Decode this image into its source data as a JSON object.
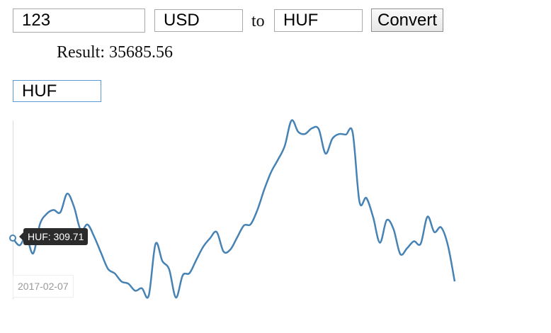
{
  "converter": {
    "amount": "123",
    "from_currency": "USD",
    "to_label": "to",
    "to_currency": "HUF",
    "convert_label": "Convert",
    "result_label": "Result:",
    "result_value": "35685.56"
  },
  "chart": {
    "selected_currency": "HUF",
    "tooltip_text": "HUF: 309.71",
    "date_label": "2017-02-07",
    "line_color": "#4682b4"
  },
  "chart_data": {
    "type": "line",
    "series": [
      {
        "name": "HUF",
        "values": [
          309.71,
          305.2,
          310.5,
          300.1,
          318.4,
          324.9,
          327.3,
          325.8,
          337.5,
          329.4,
          314.7,
          318.2,
          310.4,
          300.3,
          290.5,
          287.6,
          282.5,
          281.2,
          276.8,
          278.3,
          273.7,
          306.1,
          295.4,
          290.2,
          272.5,
          286.4,
          287.8,
          296.1,
          304.2,
          309.5,
          313.5,
          301.3,
          302.5,
          310.1,
          317.6,
          318.4,
          327.5,
          340.2,
          351.0,
          358.7,
          367.3,
          383.3,
          376.1,
          374.9,
          378.4,
          377.9,
          362.6,
          371.8,
          374.8,
          374.5,
          375.6,
          332.4,
          334.8,
          322.9,
          306.8,
          320.9,
          315.4,
          299.7,
          303.4,
          307.7,
          306.2,
          323.1,
          313.5,
          316.4,
          305.2,
          282.6
        ]
      }
    ]
  }
}
